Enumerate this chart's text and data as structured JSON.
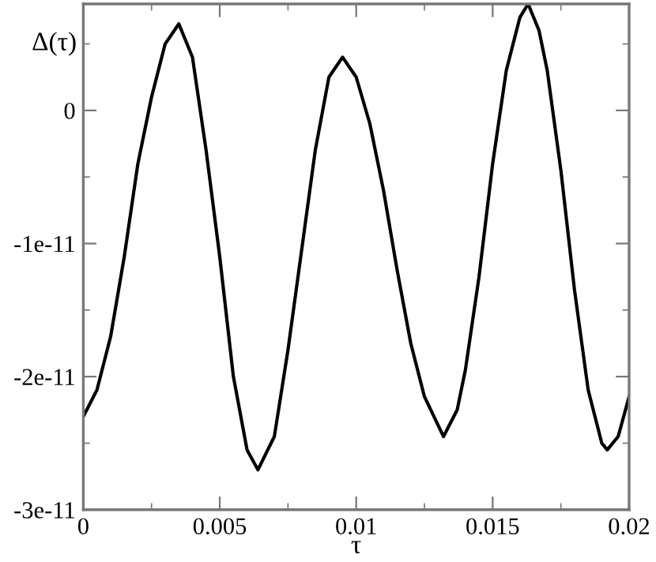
{
  "chart_data": {
    "type": "line",
    "xlabel": "τ",
    "ylabel": "Δ(τ)",
    "x": [
      0,
      0.0005,
      0.001,
      0.0015,
      0.002,
      0.0025,
      0.003,
      0.0035,
      0.004,
      0.0045,
      0.005,
      0.0055,
      0.006,
      0.0064,
      0.007,
      0.0075,
      0.008,
      0.0085,
      0.009,
      0.0095,
      0.01,
      0.0105,
      0.011,
      0.0115,
      0.012,
      0.0125,
      0.0132,
      0.0137,
      0.014,
      0.0145,
      0.015,
      0.0155,
      0.016,
      0.0163,
      0.0167,
      0.017,
      0.0175,
      0.018,
      0.0185,
      0.019,
      0.0192,
      0.0196,
      0.02
    ],
    "series": [
      {
        "color": "#000000",
        "values": [
          -2.3e-11,
          -2.1e-11,
          -1.7e-11,
          -1.1e-11,
          -4e-12,
          1e-12,
          5e-12,
          6.5e-12,
          4e-12,
          -3e-12,
          -1.1e-11,
          -2e-11,
          -2.55e-11,
          -2.7e-11,
          -2.45e-11,
          -1.8e-11,
          -1.05e-11,
          -3e-12,
          2.5e-12,
          4e-12,
          2.5e-12,
          -1e-12,
          -6e-12,
          -1.2e-11,
          -1.75e-11,
          -2.15e-11,
          -2.45e-11,
          -2.25e-11,
          -1.95e-11,
          -1.25e-11,
          -4e-12,
          3e-12,
          7e-12,
          8e-12,
          6e-12,
          3e-12,
          -4.5e-12,
          -1.35e-11,
          -2.1e-11,
          -2.5e-11,
          -2.55e-11,
          -2.45e-11,
          -2.15e-11
        ]
      }
    ],
    "xlim": [
      0,
      0.02
    ],
    "ylim": [
      -3e-11,
      8e-12
    ],
    "xticks": [
      0,
      {
        "value": 0.0025,
        "label": null
      },
      0.005,
      {
        "value": 0.0075,
        "label": null
      },
      0.01,
      {
        "value": 0.0125,
        "label": null
      },
      0.015,
      {
        "value": 0.0175,
        "label": null
      },
      0.02
    ],
    "yticks": [
      {
        "value": -3e-11,
        "label": "-3e-11"
      },
      {
        "value": -2.5e-11,
        "label": null
      },
      {
        "value": -2e-11,
        "label": "-2e-11"
      },
      {
        "value": -1.5e-11,
        "label": null
      },
      {
        "value": -1e-11,
        "label": "-1e-11"
      },
      {
        "value": -5e-12,
        "label": null
      },
      0,
      {
        "value": 5e-12,
        "label": null
      }
    ],
    "grid": false,
    "legend": false,
    "marker": "none",
    "line_style": "solid"
  }
}
